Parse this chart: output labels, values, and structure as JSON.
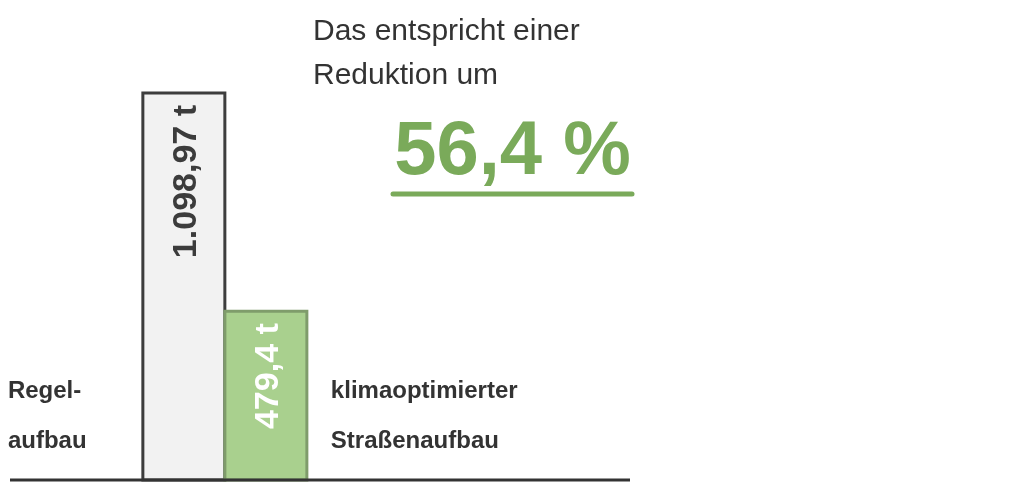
{
  "chart_data": {
    "type": "bar",
    "categories": [
      "Regel-\naufbau",
      "klimaoptimierter\nStraßenaufbau"
    ],
    "values": [
      1098.97,
      479.4
    ],
    "value_labels": [
      "1.098,97 t",
      "479,4 t"
    ],
    "colors": [
      "#f2f2f2",
      "#a9d08e"
    ],
    "annotations": [
      "Das entspricht einer\nReduktion um",
      "56,4 %"
    ],
    "grid": false,
    "legend": false
  }
}
